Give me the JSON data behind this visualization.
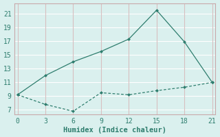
{
  "line1_x": [
    0,
    3,
    6,
    9,
    12,
    15,
    18,
    21
  ],
  "line1_y": [
    9.2,
    12.0,
    14.0,
    15.5,
    17.3,
    21.5,
    16.9,
    11.0
  ],
  "line2_x": [
    0,
    3,
    6,
    9,
    12,
    15,
    18,
    21
  ],
  "line2_y": [
    9.2,
    7.8,
    6.8,
    9.5,
    9.2,
    9.8,
    10.3,
    11.0
  ],
  "line_color": "#2e7d6e",
  "bg_color": "#daf0ee",
  "grid_color_h": "#ffffff",
  "grid_color_v": "#d8bfc0",
  "spine_color": "#c8a8aa",
  "xlabel": "Humidex (Indice chaleur)",
  "xticks": [
    0,
    3,
    6,
    9,
    12,
    15,
    18,
    21
  ],
  "yticks": [
    7,
    9,
    11,
    13,
    15,
    17,
    19,
    21
  ],
  "xlim": [
    -0.3,
    21.3
  ],
  "ylim": [
    6.3,
    22.5
  ],
  "xlabel_fontsize": 7.5,
  "tick_fontsize": 7
}
